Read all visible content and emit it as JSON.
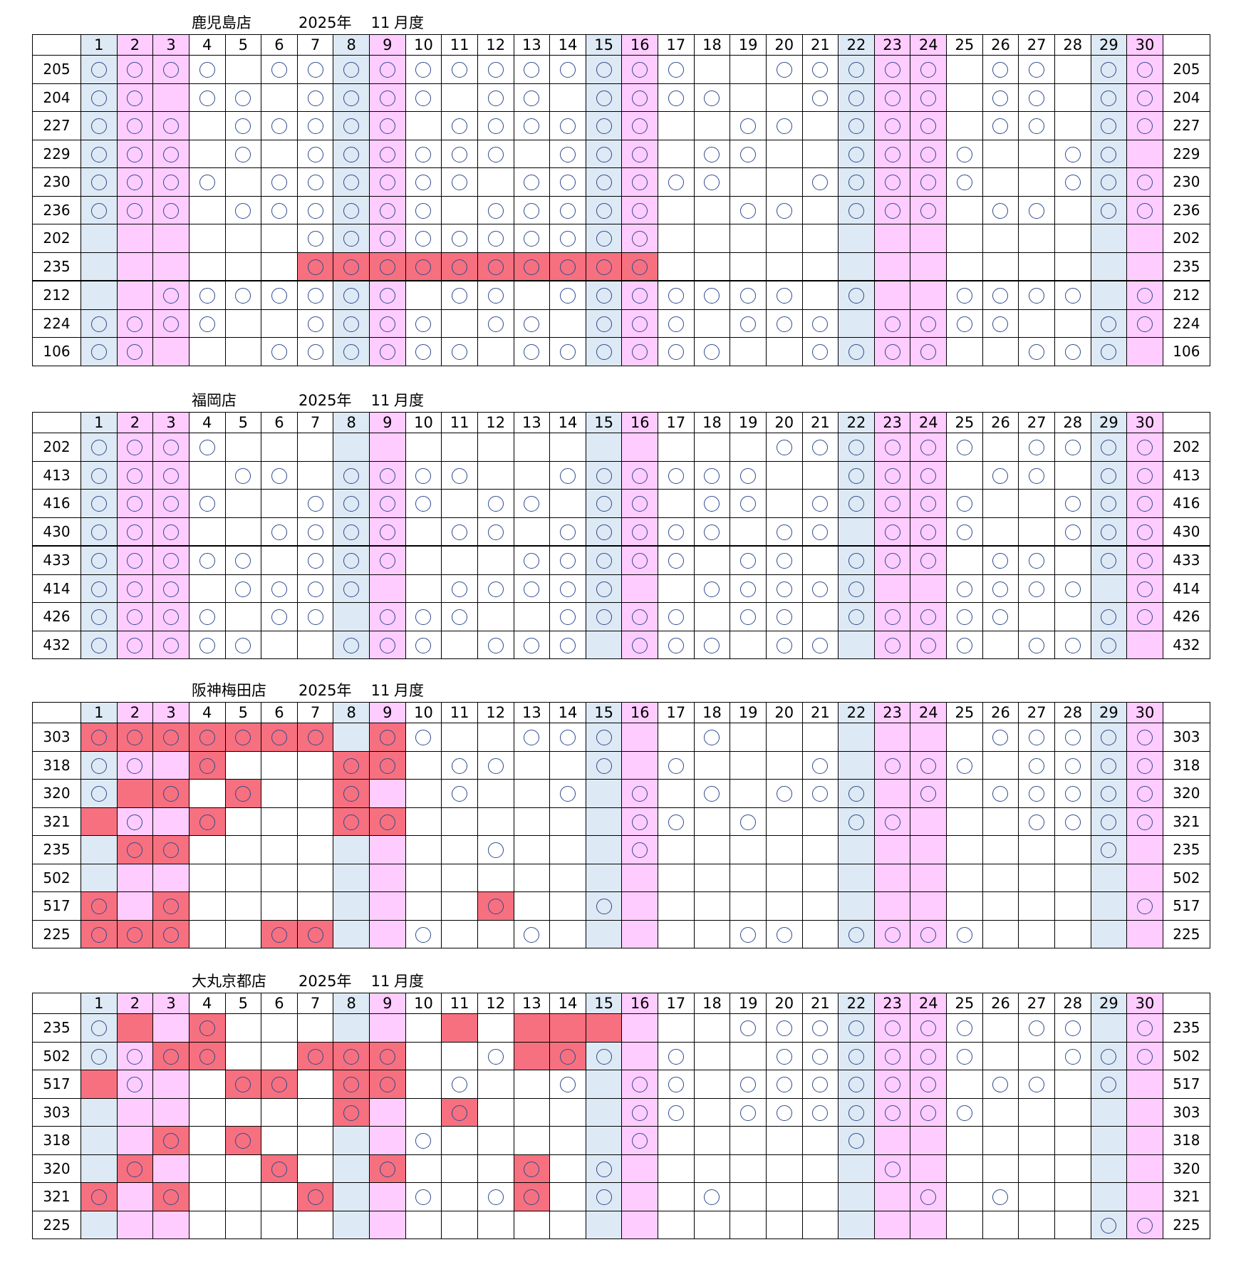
{
  "days": [
    1,
    2,
    3,
    4,
    5,
    6,
    7,
    8,
    9,
    10,
    11,
    12,
    13,
    14,
    15,
    16,
    17,
    18,
    19,
    20,
    21,
    22,
    23,
    24,
    25,
    26,
    27,
    28,
    29,
    30
  ],
  "blue_days": [
    1,
    8,
    15,
    22,
    29
  ],
  "pink_days": [
    2,
    3,
    9,
    16,
    23,
    24,
    30
  ],
  "colors": {
    "blue": "#dde9f4",
    "pink": "#ffccff",
    "red": "#f7707f",
    "circle": "#2f4b8f"
  },
  "sections": [
    {
      "shop": "鹿児島店",
      "year": "2025年",
      "month": "11",
      "month_suffix": "月度",
      "thick_after": [
        8
      ],
      "rows": [
        {
          "label": "205",
          "circles": [
            1,
            2,
            3,
            4,
            6,
            7,
            8,
            9,
            10,
            11,
            12,
            13,
            14,
            15,
            16,
            17,
            20,
            21,
            22,
            23,
            24,
            26,
            27,
            29,
            30
          ],
          "red": []
        },
        {
          "label": "204",
          "circles": [
            1,
            2,
            4,
            5,
            7,
            8,
            9,
            10,
            12,
            13,
            15,
            16,
            17,
            18,
            21,
            22,
            23,
            24,
            26,
            27,
            29,
            30
          ],
          "red": []
        },
        {
          "label": "227",
          "circles": [
            1,
            2,
            3,
            5,
            6,
            7,
            8,
            9,
            11,
            12,
            13,
            14,
            15,
            16,
            19,
            20,
            22,
            23,
            24,
            26,
            27,
            29,
            30
          ],
          "red": []
        },
        {
          "label": "229",
          "circles": [
            1,
            2,
            3,
            5,
            7,
            8,
            9,
            10,
            11,
            12,
            14,
            15,
            16,
            18,
            19,
            22,
            23,
            24,
            25,
            28,
            29
          ],
          "red": []
        },
        {
          "label": "230",
          "circles": [
            1,
            2,
            3,
            4,
            6,
            7,
            8,
            9,
            10,
            11,
            13,
            14,
            15,
            16,
            17,
            18,
            21,
            22,
            23,
            24,
            25,
            28,
            29,
            30
          ],
          "red": []
        },
        {
          "label": "236",
          "circles": [
            1,
            2,
            3,
            5,
            6,
            7,
            8,
            9,
            10,
            12,
            13,
            14,
            15,
            16,
            19,
            20,
            22,
            23,
            24,
            26,
            27,
            29,
            30
          ],
          "red": []
        },
        {
          "label": "202",
          "circles": [
            7,
            8,
            9,
            10,
            11,
            12,
            13,
            14,
            15,
            16
          ],
          "red": []
        },
        {
          "label": "235",
          "circles": [
            7,
            8,
            9,
            10,
            11,
            12,
            13,
            14,
            15,
            16
          ],
          "red": [
            7,
            8,
            9,
            10,
            11,
            12,
            13,
            14,
            15,
            16
          ]
        },
        {
          "label": "212",
          "circles": [
            3,
            4,
            5,
            6,
            7,
            8,
            9,
            11,
            12,
            14,
            15,
            16,
            17,
            18,
            19,
            20,
            22,
            25,
            26,
            27,
            28,
            30
          ],
          "red": []
        },
        {
          "label": "224",
          "circles": [
            1,
            2,
            3,
            4,
            7,
            8,
            9,
            10,
            12,
            13,
            15,
            16,
            17,
            19,
            20,
            21,
            23,
            24,
            25,
            26,
            29,
            30
          ],
          "red": []
        },
        {
          "label": "106",
          "circles": [
            1,
            2,
            6,
            7,
            8,
            9,
            10,
            11,
            13,
            14,
            15,
            16,
            17,
            18,
            21,
            22,
            23,
            24,
            27,
            28,
            29
          ],
          "red": []
        }
      ]
    },
    {
      "shop": "福岡店",
      "year": "2025年",
      "month": "11",
      "month_suffix": "月度",
      "thick_after": [
        4
      ],
      "rows": [
        {
          "label": "202",
          "circles": [
            1,
            2,
            3,
            4,
            20,
            21,
            22,
            23,
            24,
            25,
            27,
            28,
            29,
            30
          ],
          "red": []
        },
        {
          "label": "413",
          "circles": [
            1,
            2,
            3,
            5,
            6,
            8,
            9,
            10,
            11,
            14,
            15,
            16,
            17,
            18,
            19,
            22,
            23,
            24,
            26,
            27,
            29,
            30
          ],
          "red": []
        },
        {
          "label": "416",
          "circles": [
            1,
            2,
            3,
            4,
            7,
            8,
            9,
            10,
            12,
            13,
            15,
            16,
            18,
            19,
            21,
            22,
            23,
            24,
            25,
            28,
            29,
            30
          ],
          "red": []
        },
        {
          "label": "430",
          "circles": [
            1,
            2,
            3,
            6,
            7,
            8,
            9,
            11,
            12,
            14,
            15,
            16,
            17,
            18,
            20,
            21,
            23,
            24,
            25,
            28,
            29,
            30
          ],
          "red": []
        },
        {
          "label": "433",
          "circles": [
            1,
            2,
            3,
            4,
            5,
            7,
            8,
            9,
            13,
            14,
            15,
            16,
            17,
            19,
            20,
            22,
            23,
            24,
            26,
            27,
            29,
            30
          ],
          "red": []
        },
        {
          "label": "414",
          "circles": [
            1,
            2,
            3,
            5,
            6,
            7,
            8,
            11,
            12,
            13,
            14,
            15,
            18,
            19,
            20,
            21,
            22,
            25,
            26,
            27,
            28,
            30
          ],
          "red": []
        },
        {
          "label": "426",
          "circles": [
            1,
            2,
            3,
            4,
            6,
            7,
            9,
            10,
            11,
            14,
            15,
            16,
            17,
            19,
            20,
            22,
            23,
            24,
            25,
            26,
            29,
            30
          ],
          "red": []
        },
        {
          "label": "432",
          "circles": [
            1,
            2,
            3,
            4,
            5,
            8,
            9,
            10,
            12,
            13,
            14,
            16,
            17,
            18,
            20,
            21,
            23,
            24,
            25,
            27,
            28,
            29
          ],
          "red": []
        }
      ]
    },
    {
      "shop": "阪神梅田店",
      "year": "2025年",
      "month": "11",
      "month_suffix": "月度",
      "thick_after": [],
      "rows": [
        {
          "label": "303",
          "circles": [
            1,
            2,
            3,
            4,
            5,
            6,
            7,
            9,
            10,
            13,
            14,
            15,
            18,
            26,
            27,
            28,
            29,
            30
          ],
          "red": [
            1,
            2,
            3,
            4,
            5,
            6,
            7,
            9
          ]
        },
        {
          "label": "318",
          "circles": [
            1,
            2,
            4,
            8,
            9,
            11,
            12,
            15,
            17,
            21,
            23,
            24,
            25,
            27,
            28,
            29,
            30
          ],
          "red": [
            4,
            8,
            9
          ]
        },
        {
          "label": "320",
          "circles": [
            1,
            3,
            5,
            8,
            11,
            14,
            16,
            18,
            20,
            21,
            22,
            24,
            26,
            27,
            28,
            29,
            30
          ],
          "red": [
            2,
            3,
            5,
            8
          ]
        },
        {
          "label": "321",
          "circles": [
            2,
            4,
            8,
            9,
            16,
            17,
            19,
            22,
            23,
            27,
            28,
            29,
            30
          ],
          "red": [
            1,
            4,
            8,
            9
          ]
        },
        {
          "label": "235",
          "circles": [
            2,
            3,
            12,
            16,
            29
          ],
          "red": [
            2,
            3
          ]
        },
        {
          "label": "502",
          "circles": [],
          "red": []
        },
        {
          "label": "517",
          "circles": [
            1,
            3,
            12,
            15,
            30
          ],
          "red": [
            1,
            3,
            12
          ]
        },
        {
          "label": "225",
          "circles": [
            1,
            2,
            3,
            6,
            7,
            10,
            13,
            19,
            20,
            22,
            23,
            24,
            25
          ],
          "red": [
            1,
            2,
            3,
            6,
            7
          ]
        }
      ]
    },
    {
      "shop": "大丸京都店",
      "year": "2025年",
      "month": "11",
      "month_suffix": "月度",
      "thick_after": [],
      "rows": [
        {
          "label": "235",
          "circles": [
            1,
            4,
            19,
            20,
            21,
            22,
            23,
            24,
            25,
            27,
            28,
            30
          ],
          "red": [
            2,
            4,
            11,
            13,
            14,
            15
          ]
        },
        {
          "label": "502",
          "circles": [
            1,
            2,
            3,
            4,
            7,
            8,
            9,
            12,
            14,
            15,
            17,
            20,
            21,
            22,
            23,
            24,
            25,
            28,
            29,
            30
          ],
          "red": [
            3,
            4,
            7,
            8,
            9,
            13,
            14
          ]
        },
        {
          "label": "517",
          "circles": [
            2,
            5,
            6,
            8,
            9,
            11,
            14,
            16,
            17,
            19,
            20,
            21,
            22,
            23,
            24,
            26,
            27,
            29
          ],
          "red": [
            1,
            5,
            6,
            8,
            9
          ]
        },
        {
          "label": "303",
          "circles": [
            8,
            11,
            16,
            17,
            19,
            20,
            21,
            22,
            23,
            24,
            25
          ],
          "red": [
            8,
            11
          ]
        },
        {
          "label": "318",
          "circles": [
            3,
            5,
            10,
            16,
            22
          ],
          "red": [
            3,
            5
          ]
        },
        {
          "label": "320",
          "circles": [
            2,
            6,
            9,
            13,
            15,
            23
          ],
          "red": [
            2,
            6,
            9,
            13
          ]
        },
        {
          "label": "321",
          "circles": [
            1,
            3,
            7,
            10,
            12,
            13,
            15,
            18,
            24,
            26
          ],
          "red": [
            1,
            3,
            7,
            13
          ]
        },
        {
          "label": "225",
          "circles": [
            29,
            30
          ],
          "red": []
        }
      ]
    }
  ]
}
